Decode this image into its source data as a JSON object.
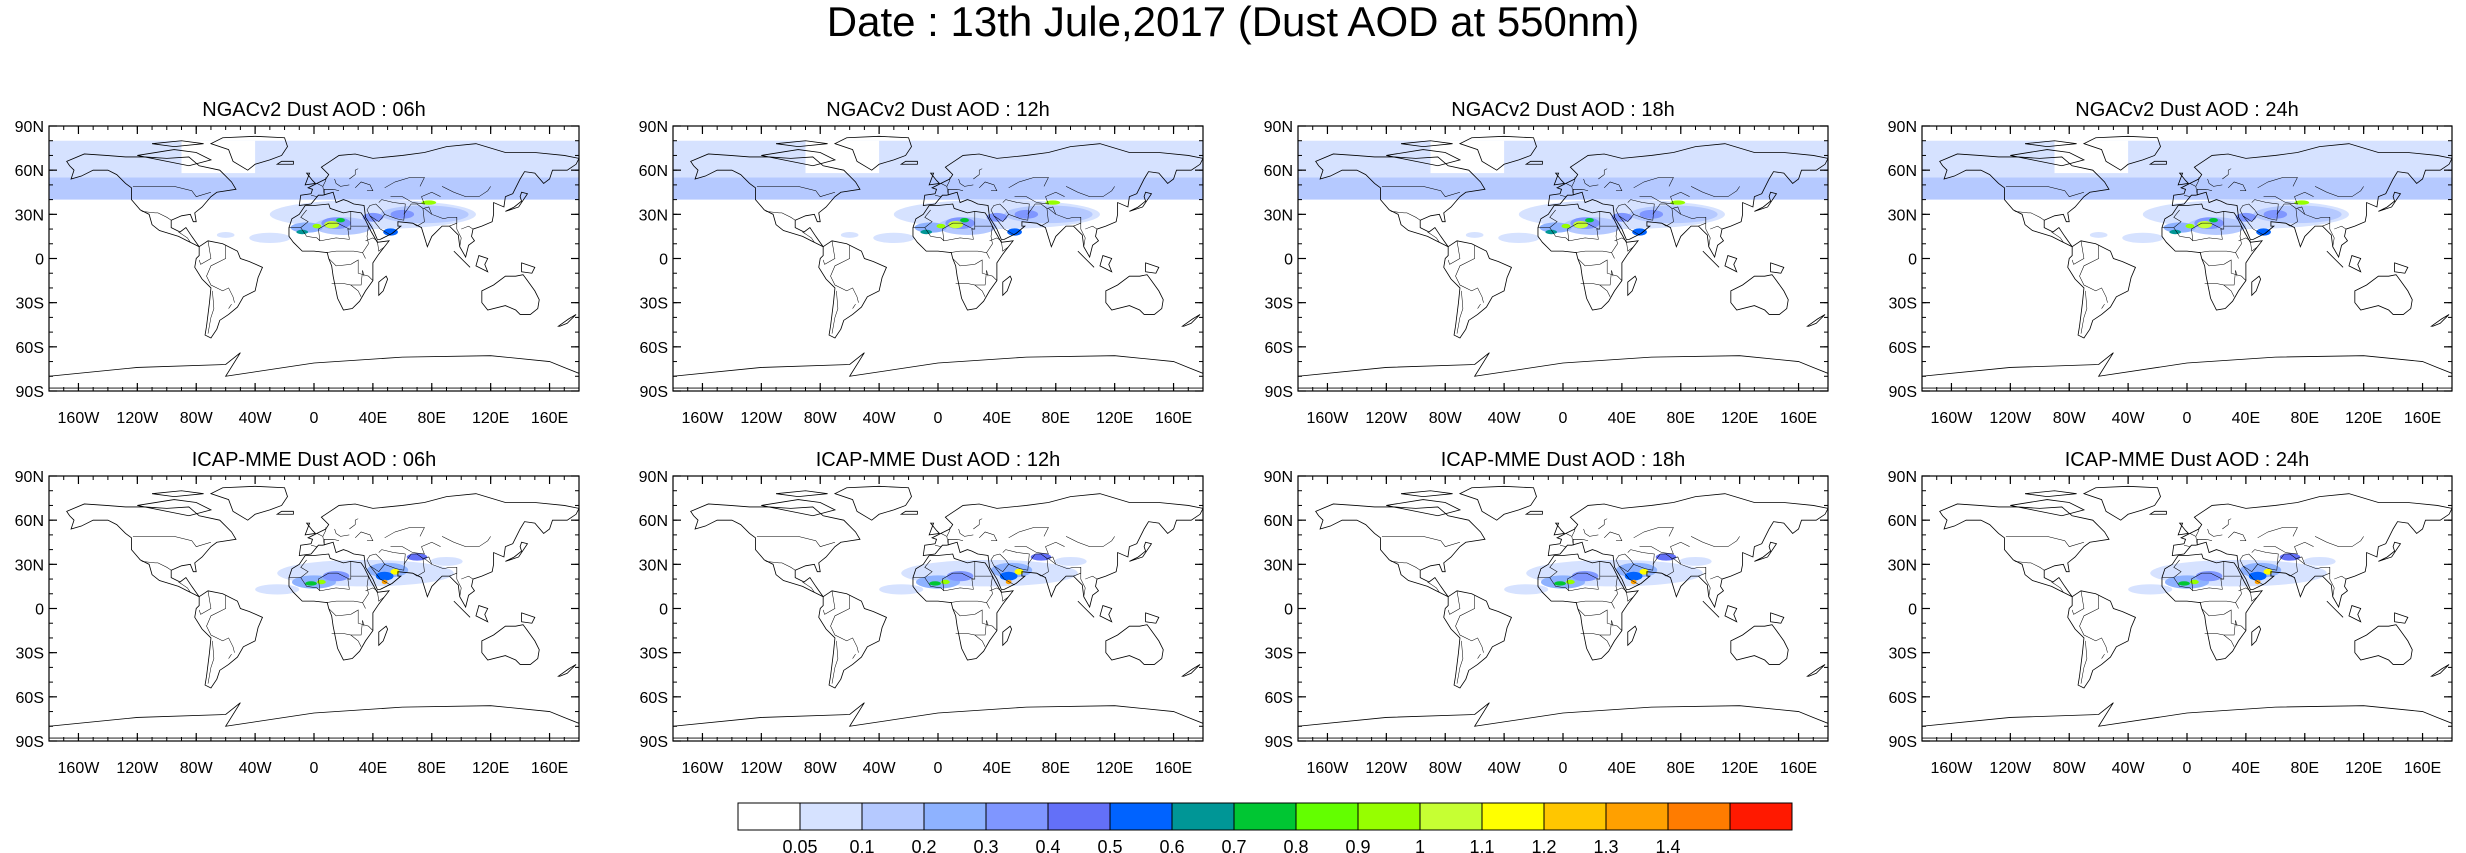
{
  "title": "Date : 13th Jule,2017 (Dust AOD at 550nm)",
  "panels": [
    {
      "title": "NGACv2 Dust AOD : 06h",
      "model": "NGACv2",
      "lead": "06h"
    },
    {
      "title": "NGACv2 Dust AOD : 12h",
      "model": "NGACv2",
      "lead": "12h"
    },
    {
      "title": "NGACv2 Dust AOD : 18h",
      "model": "NGACv2",
      "lead": "18h"
    },
    {
      "title": "NGACv2 Dust AOD : 24h",
      "model": "NGACv2",
      "lead": "24h"
    },
    {
      "title": "ICAP-MME Dust AOD : 06h",
      "model": "ICAP-MME",
      "lead": "06h"
    },
    {
      "title": "ICAP-MME Dust AOD : 12h",
      "model": "ICAP-MME",
      "lead": "12h"
    },
    {
      "title": "ICAP-MME Dust AOD : 18h",
      "model": "ICAP-MME",
      "lead": "18h"
    },
    {
      "title": "ICAP-MME Dust AOD : 24h",
      "model": "ICAP-MME",
      "lead": "24h"
    }
  ],
  "lat_ticks": [
    "90N",
    "60N",
    "30N",
    "0",
    "30S",
    "60S",
    "90S"
  ],
  "lon_ticks": [
    "160W",
    "120W",
    "80W",
    "40W",
    "0",
    "40E",
    "80E",
    "120E",
    "160E"
  ],
  "colorbar": {
    "labels": [
      "0.05",
      "0.1",
      "0.2",
      "0.3",
      "0.4",
      "0.5",
      "0.6",
      "0.7",
      "0.8",
      "0.9",
      "1",
      "1.1",
      "1.2",
      "1.3",
      "1.4"
    ],
    "colors": [
      "#ffffff",
      "#d6e2ff",
      "#b5c9ff",
      "#8eb2ff",
      "#7f96ff",
      "#6370f8",
      "#0063ff",
      "#009696",
      "#00c633",
      "#63ff00",
      "#96ff00",
      "#c6ff33",
      "#ffff00",
      "#ffc600",
      "#ffa000",
      "#ff7c00",
      "#ff1900"
    ]
  }
}
